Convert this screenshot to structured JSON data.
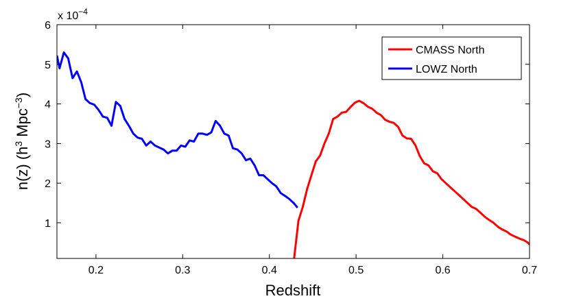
{
  "chart_data": {
    "type": "line",
    "title": "",
    "xlabel": "Redshift",
    "ylabel": {
      "prefix": "n(z) (h",
      "sup1": "3",
      "mid": " Mpc",
      "sup2": "−3",
      "suffix": ")"
    },
    "y_multiplier": {
      "base": "x 10",
      "exponent": "−4"
    },
    "xlim": [
      0.155,
      0.7
    ],
    "ylim": [
      0.1,
      6
    ],
    "xticks": [
      "0.2",
      "0.3",
      "0.4",
      "0.5",
      "0.6",
      "0.7"
    ],
    "yticks": [
      "1",
      "2",
      "3",
      "4",
      "5",
      "6"
    ],
    "grid": false,
    "legend_position": "top-right",
    "series": [
      {
        "name": "CMASS North",
        "color": "#ff0000",
        "x": [
          0.4285,
          0.4335,
          0.4385,
          0.4435,
          0.4485,
          0.4535,
          0.4585,
          0.4635,
          0.4685,
          0.4735,
          0.4785,
          0.4835,
          0.4885,
          0.4935,
          0.4985,
          0.5035,
          0.5085,
          0.5135,
          0.5185,
          0.5235,
          0.5285,
          0.5335,
          0.5385,
          0.5435,
          0.5485,
          0.5535,
          0.5585,
          0.5635,
          0.5685,
          0.5735,
          0.5785,
          0.5835,
          0.5885,
          0.5935,
          0.5985,
          0.6035,
          0.6085,
          0.6135,
          0.6185,
          0.6235,
          0.6285,
          0.6335,
          0.6385,
          0.6435,
          0.6485,
          0.6535,
          0.6585,
          0.6635,
          0.6685,
          0.6735,
          0.6785,
          0.6835,
          0.6885,
          0.6935,
          0.698,
          0.7
        ],
        "values": [
          0.1,
          1.05,
          1.4,
          1.85,
          2.2,
          2.55,
          2.7,
          3.0,
          3.25,
          3.62,
          3.68,
          3.78,
          3.8,
          3.92,
          4.03,
          4.08,
          4.02,
          3.93,
          3.88,
          3.78,
          3.72,
          3.6,
          3.55,
          3.52,
          3.42,
          3.2,
          3.13,
          3.12,
          2.95,
          2.68,
          2.5,
          2.45,
          2.3,
          2.25,
          2.1,
          2.0,
          1.9,
          1.8,
          1.7,
          1.6,
          1.5,
          1.4,
          1.35,
          1.25,
          1.15,
          1.07,
          1.0,
          0.9,
          0.83,
          0.78,
          0.7,
          0.65,
          0.6,
          0.56,
          0.5,
          0.45
        ]
      },
      {
        "name": "LOWZ North",
        "color": "#0000ff",
        "x": [
          0.155,
          0.158,
          0.163,
          0.168,
          0.173,
          0.178,
          0.183,
          0.188,
          0.193,
          0.198,
          0.203,
          0.208,
          0.213,
          0.218,
          0.223,
          0.228,
          0.233,
          0.238,
          0.243,
          0.248,
          0.253,
          0.258,
          0.263,
          0.268,
          0.273,
          0.278,
          0.283,
          0.288,
          0.293,
          0.298,
          0.303,
          0.308,
          0.313,
          0.318,
          0.323,
          0.328,
          0.333,
          0.338,
          0.343,
          0.348,
          0.353,
          0.358,
          0.363,
          0.368,
          0.373,
          0.378,
          0.383,
          0.388,
          0.393,
          0.398,
          0.403,
          0.408,
          0.413,
          0.418,
          0.423,
          0.428,
          0.4325
        ],
        "values": [
          5.22,
          4.9,
          5.3,
          5.15,
          4.65,
          4.82,
          4.55,
          4.12,
          4.02,
          3.98,
          3.85,
          3.68,
          3.65,
          3.45,
          4.05,
          3.95,
          3.62,
          3.45,
          3.25,
          3.15,
          3.12,
          2.95,
          3.05,
          2.95,
          2.9,
          2.85,
          2.75,
          2.82,
          2.82,
          2.95,
          2.92,
          3.08,
          3.05,
          3.25,
          3.25,
          3.22,
          3.28,
          3.57,
          3.45,
          3.25,
          3.2,
          2.88,
          2.85,
          2.75,
          2.58,
          2.62,
          2.45,
          2.2,
          2.2,
          2.1,
          2.0,
          1.92,
          1.75,
          1.68,
          1.6,
          1.5,
          1.38
        ]
      }
    ]
  }
}
